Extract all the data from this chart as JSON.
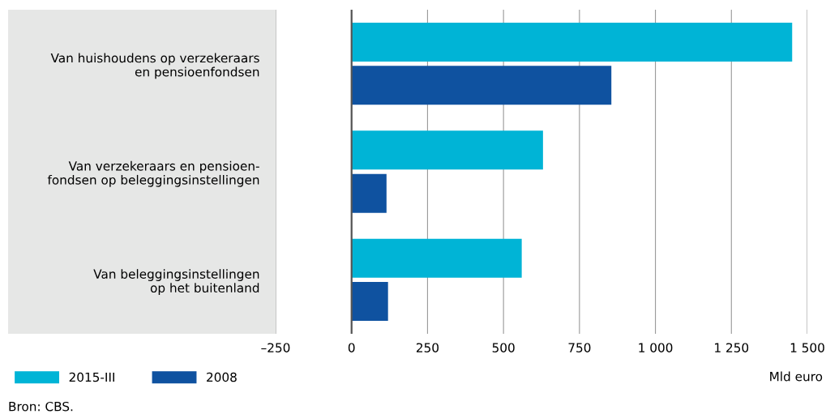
{
  "chart_data": {
    "type": "bar",
    "orientation": "horizontal",
    "categories": [
      "Van huishoudens op verzekeraars\nen pensioenfondsen",
      "Van verzekeraars en pensioen-\nfondsen op beleggingsinstellingen",
      "Van beleggingsinstellingen\nop het buitenland"
    ],
    "series": [
      {
        "name": "2015-III",
        "color": "#00b4d6",
        "values": [
          1450,
          630,
          560
        ]
      },
      {
        "name": "2008",
        "color": "#0f52a0",
        "values": [
          855,
          115,
          120
        ]
      }
    ],
    "xlim": [
      -250,
      1500
    ],
    "xticks": [
      {
        "value": -250,
        "label": "–250"
      },
      0,
      250,
      500,
      750,
      {
        "value": 1000,
        "label": "1 000"
      },
      {
        "value": 1250,
        "label": "1 250"
      },
      {
        "value": 1500,
        "label": "1 500"
      }
    ],
    "xlabel": "Mld euro",
    "grid": "x",
    "legend": "bottom left",
    "ref_lines": [
      {
        "axis": "x",
        "value": 0,
        "color": "#555555"
      }
    ],
    "annotations": [
      "Bron: CBS."
    ]
  }
}
